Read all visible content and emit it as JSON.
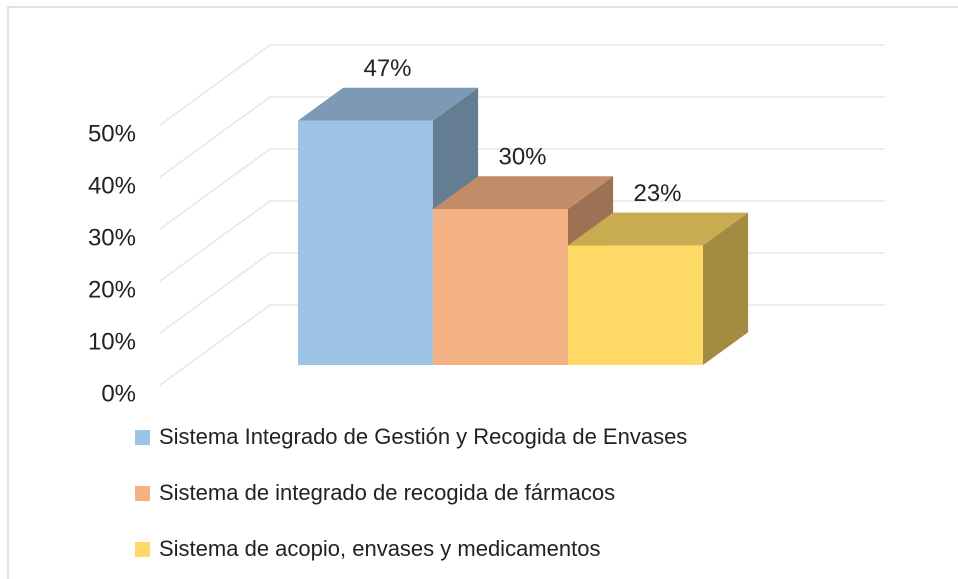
{
  "chart_data": {
    "type": "bar3d",
    "ylim": [
      0,
      50
    ],
    "yticks": [
      {
        "value": 0,
        "label": "0%"
      },
      {
        "value": 10,
        "label": "10%"
      },
      {
        "value": 20,
        "label": "20%"
      },
      {
        "value": 30,
        "label": "30%"
      },
      {
        "value": 40,
        "label": "40%"
      },
      {
        "value": 50,
        "label": "50%"
      }
    ],
    "grid": true,
    "legend": "bottom",
    "series": [
      {
        "name": "Sistema Integrado de Gestión y Recogida de Envases",
        "color": "#9dc3e6",
        "values": [
          47
        ],
        "value_labels": [
          "47%"
        ]
      },
      {
        "name": "Sistema de integrado de recogida de fármacos",
        "color": "#f4b183",
        "values": [
          30
        ],
        "value_labels": [
          "30%"
        ]
      },
      {
        "name": "Sistema de acopio, envases y medicamentos",
        "color": "#ffd966",
        "values": [
          23
        ],
        "value_labels": [
          "23%"
        ]
      }
    ]
  }
}
